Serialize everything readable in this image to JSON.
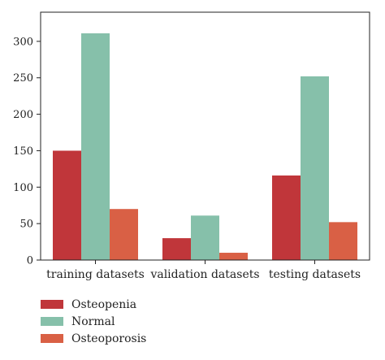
{
  "chart_data": {
    "type": "bar",
    "categories": [
      "training datasets",
      "validation datasets",
      "testing datasets"
    ],
    "series": [
      {
        "name": "Osteopenia",
        "values": [
          150,
          30,
          116
        ],
        "color": "#c0363a"
      },
      {
        "name": "Normal",
        "values": [
          311,
          61,
          252
        ],
        "color": "#86c0aa"
      },
      {
        "name": "Osteoporosis",
        "values": [
          70,
          10,
          52
        ],
        "color": "#d96045"
      }
    ],
    "ylim": [
      0,
      340
    ],
    "yticks": [
      "0",
      "50",
      "100",
      "150",
      "200",
      "250",
      "300"
    ],
    "xlabel": "",
    "ylabel": "",
    "title": "",
    "grid": false,
    "legend_placement": "bottom-left"
  }
}
